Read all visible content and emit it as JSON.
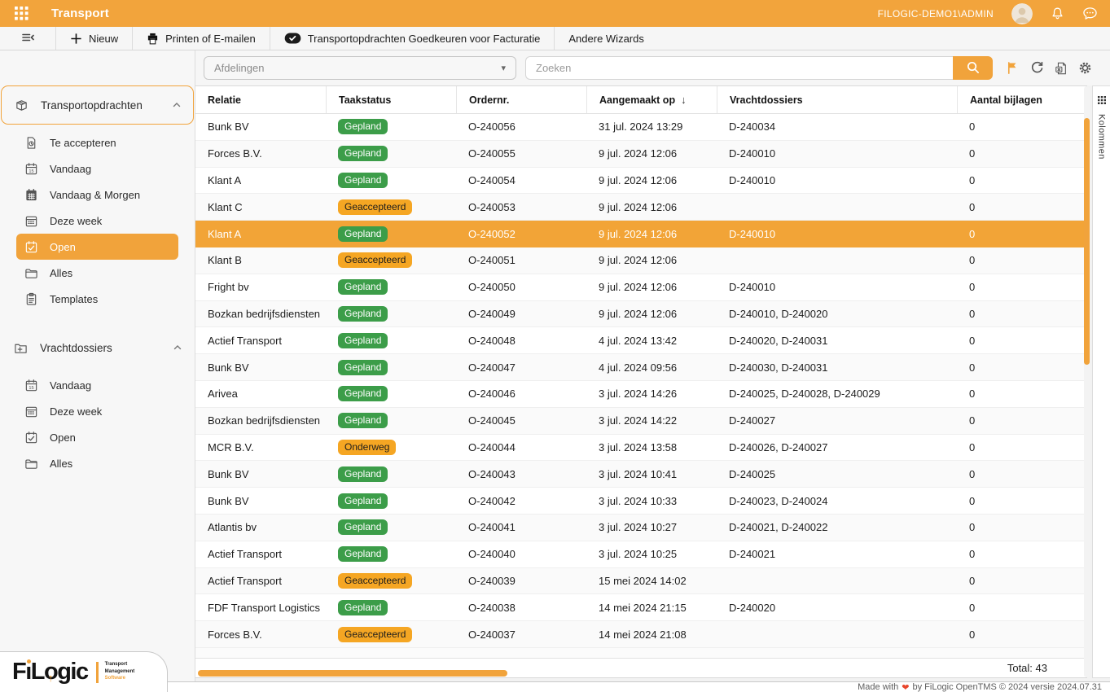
{
  "topbar": {
    "title": "Transport",
    "user": "FILOGIC-DEMO1\\ADMIN"
  },
  "toolbar": {
    "buttons": [
      {
        "label": "Nieuw",
        "icon": "plus-icon"
      },
      {
        "label": "Printen of E-mailen",
        "icon": "printer-icon"
      },
      {
        "label": "Transportopdrachten Goedkeuren voor Facturatie",
        "icon": "approve-check-icon"
      },
      {
        "label": "Andere Wizards",
        "icon": null
      }
    ]
  },
  "sidebar": {
    "sections": [
      {
        "label": "Transportopdrachten",
        "icon": "package-icon",
        "active": true,
        "items": [
          {
            "label": "Te accepteren",
            "icon": "document-clock-icon"
          },
          {
            "label": "Vandaag",
            "icon": "calendar-day-icon"
          },
          {
            "label": "Vandaag & Morgen",
            "icon": "calendar-filled-icon"
          },
          {
            "label": "Deze week",
            "icon": "calendar-week-icon"
          },
          {
            "label": "Open",
            "icon": "calendar-check-icon",
            "selected": true
          },
          {
            "label": "Alles",
            "icon": "folder-icon"
          },
          {
            "label": "Templates",
            "icon": "clipboard-icon"
          }
        ]
      },
      {
        "label": "Vrachtdossiers",
        "icon": "folder-plus-icon",
        "active": false,
        "items": [
          {
            "label": "Vandaag",
            "icon": "calendar-day-icon"
          },
          {
            "label": "Deze week",
            "icon": "calendar-week-icon"
          },
          {
            "label": "Open",
            "icon": "calendar-check-icon"
          },
          {
            "label": "Alles",
            "icon": "folder-icon"
          }
        ]
      }
    ]
  },
  "filters": {
    "afdelingen_placeholder": "Afdelingen",
    "search_placeholder": "Zoeken"
  },
  "table": {
    "columns": [
      {
        "label": "Relatie"
      },
      {
        "label": "Taakstatus"
      },
      {
        "label": "Ordernr."
      },
      {
        "label": "Aangemaakt op",
        "sort": "desc"
      },
      {
        "label": "Vrachtdossiers"
      },
      {
        "label": "Aantal bijlagen"
      }
    ],
    "status_colors": {
      "Gepland": {
        "bg": "#3C9D49",
        "fg": "#ffffff"
      },
      "Geaccepteerd": {
        "bg": "#F5A623",
        "fg": "#1d1d1d"
      },
      "Onderweg": {
        "bg": "#F5A623",
        "fg": "#1d1d1d"
      }
    },
    "rows": [
      {
        "relatie": "Bunk BV",
        "status": "Gepland",
        "ordernr": "O-240056",
        "aangemaakt": "31 jul. 2024 13:29",
        "vrachtdossiers": "D-240034",
        "bijlagen": "0"
      },
      {
        "relatie": "Forces B.V.",
        "status": "Gepland",
        "ordernr": "O-240055",
        "aangemaakt": "9 jul. 2024 12:06",
        "vrachtdossiers": "D-240010",
        "bijlagen": "0"
      },
      {
        "relatie": "Klant A",
        "status": "Gepland",
        "ordernr": "O-240054",
        "aangemaakt": "9 jul. 2024 12:06",
        "vrachtdossiers": "D-240010",
        "bijlagen": "0"
      },
      {
        "relatie": "Klant C",
        "status": "Geaccepteerd",
        "ordernr": "O-240053",
        "aangemaakt": "9 jul. 2024 12:06",
        "vrachtdossiers": "",
        "bijlagen": "0"
      },
      {
        "relatie": "Klant A",
        "status": "Gepland",
        "ordernr": "O-240052",
        "aangemaakt": "9 jul. 2024 12:06",
        "vrachtdossiers": "D-240010",
        "bijlagen": "0",
        "selected": true
      },
      {
        "relatie": "Klant B",
        "status": "Geaccepteerd",
        "ordernr": "O-240051",
        "aangemaakt": "9 jul. 2024 12:06",
        "vrachtdossiers": "",
        "bijlagen": "0"
      },
      {
        "relatie": "Fright bv",
        "status": "Gepland",
        "ordernr": "O-240050",
        "aangemaakt": "9 jul. 2024 12:06",
        "vrachtdossiers": "D-240010",
        "bijlagen": "0"
      },
      {
        "relatie": "Bozkan bedrijfsdiensten",
        "status": "Gepland",
        "ordernr": "O-240049",
        "aangemaakt": "9 jul. 2024 12:06",
        "vrachtdossiers": "D-240010, D-240020",
        "bijlagen": "0"
      },
      {
        "relatie": "Actief Transport",
        "status": "Gepland",
        "ordernr": "O-240048",
        "aangemaakt": "4 jul. 2024 13:42",
        "vrachtdossiers": "D-240020, D-240031",
        "bijlagen": "0"
      },
      {
        "relatie": "Bunk BV",
        "status": "Gepland",
        "ordernr": "O-240047",
        "aangemaakt": "4 jul. 2024 09:56",
        "vrachtdossiers": "D-240030, D-240031",
        "bijlagen": "0"
      },
      {
        "relatie": "Arivea",
        "status": "Gepland",
        "ordernr": "O-240046",
        "aangemaakt": "3 jul. 2024 14:26",
        "vrachtdossiers": "D-240025, D-240028, D-240029",
        "bijlagen": "0"
      },
      {
        "relatie": "Bozkan bedrijfsdiensten",
        "status": "Gepland",
        "ordernr": "O-240045",
        "aangemaakt": "3 jul. 2024 14:22",
        "vrachtdossiers": "D-240027",
        "bijlagen": "0"
      },
      {
        "relatie": "MCR B.V.",
        "status": "Onderweg",
        "ordernr": "O-240044",
        "aangemaakt": "3 jul. 2024 13:58",
        "vrachtdossiers": "D-240026, D-240027",
        "bijlagen": "0"
      },
      {
        "relatie": "Bunk BV",
        "status": "Gepland",
        "ordernr": "O-240043",
        "aangemaakt": "3 jul. 2024 10:41",
        "vrachtdossiers": "D-240025",
        "bijlagen": "0"
      },
      {
        "relatie": "Bunk BV",
        "status": "Gepland",
        "ordernr": "O-240042",
        "aangemaakt": "3 jul. 2024 10:33",
        "vrachtdossiers": "D-240023, D-240024",
        "bijlagen": "0"
      },
      {
        "relatie": "Atlantis bv",
        "status": "Gepland",
        "ordernr": "O-240041",
        "aangemaakt": "3 jul. 2024 10:27",
        "vrachtdossiers": "D-240021, D-240022",
        "bijlagen": "0"
      },
      {
        "relatie": "Actief Transport",
        "status": "Gepland",
        "ordernr": "O-240040",
        "aangemaakt": "3 jul. 2024 10:25",
        "vrachtdossiers": "D-240021",
        "bijlagen": "0"
      },
      {
        "relatie": "Actief Transport",
        "status": "Geaccepteerd",
        "ordernr": "O-240039",
        "aangemaakt": "15 mei 2024 14:02",
        "vrachtdossiers": "",
        "bijlagen": "0"
      },
      {
        "relatie": "FDF Transport Logistics",
        "status": "Gepland",
        "ordernr": "O-240038",
        "aangemaakt": "14 mei 2024 21:15",
        "vrachtdossiers": "D-240020",
        "bijlagen": "0"
      },
      {
        "relatie": "Forces B.V.",
        "status": "Geaccepteerd",
        "ordernr": "O-240037",
        "aangemaakt": "14 mei 2024 21:08",
        "vrachtdossiers": "",
        "bijlagen": "0"
      }
    ],
    "total_label": "Total: 43"
  },
  "column_rail": {
    "label": "Kolommen"
  },
  "footer": {
    "prefix": "Made with",
    "heart": "❤",
    "suffix": "by FiLogic OpenTMS © 2024 versie 2024.07.31"
  },
  "logo": {
    "name": "FiLogic",
    "tagline": [
      "Transport",
      "Management",
      "Software"
    ]
  },
  "colors": {
    "accent_orange": "#F1A33B",
    "status_green": "#3C9D49",
    "status_amber": "#F5A623"
  }
}
